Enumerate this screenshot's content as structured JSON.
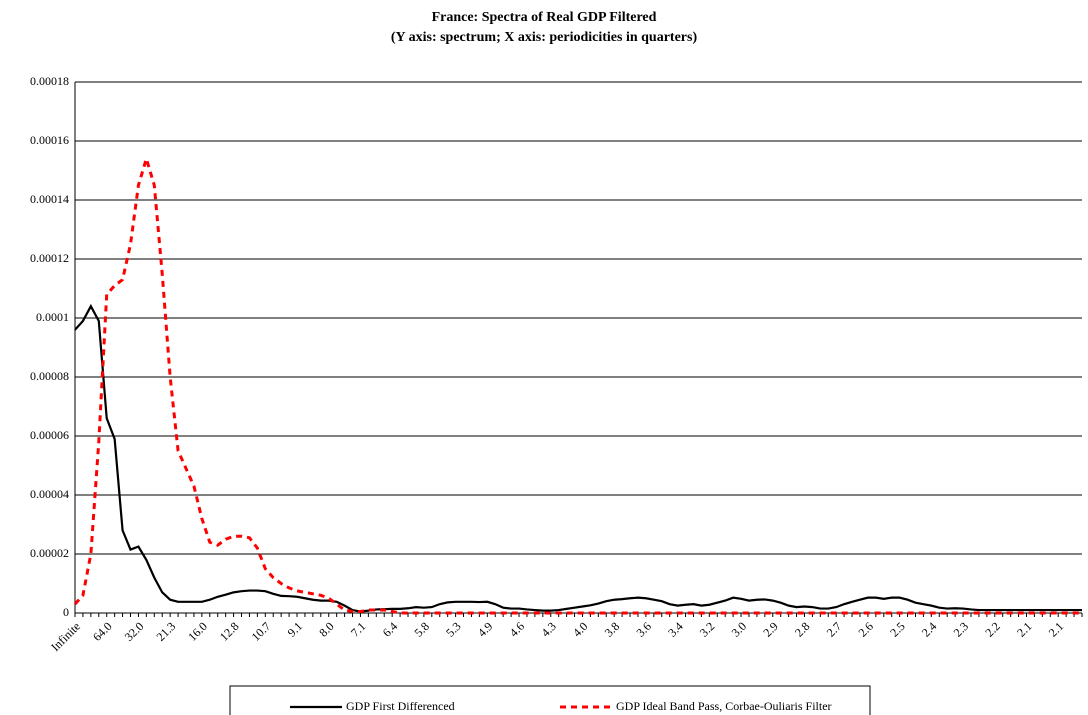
{
  "chart_data": {
    "type": "line",
    "title": "France: Spectra of Real GDP Filtered",
    "subtitle": "(Y axis: spectrum; X axis: periodicities in quarters)",
    "categories": [
      "Infinite",
      null,
      null,
      null,
      "64.0",
      null,
      null,
      null,
      "32.0",
      null,
      null,
      null,
      "21.3",
      null,
      null,
      null,
      "16.0",
      null,
      null,
      null,
      "12.8",
      null,
      null,
      null,
      "10.7",
      null,
      null,
      null,
      "9.1",
      null,
      null,
      null,
      "8.0",
      null,
      null,
      null,
      "7.1",
      null,
      null,
      null,
      "6.4",
      null,
      null,
      null,
      "5.8",
      null,
      null,
      null,
      "5.3",
      null,
      null,
      null,
      "4.9",
      null,
      null,
      null,
      "4.6",
      null,
      null,
      null,
      "4.3",
      null,
      null,
      null,
      "4.0",
      null,
      null,
      null,
      "3.8",
      null,
      null,
      null,
      "3.6",
      null,
      null,
      null,
      "3.4",
      null,
      null,
      null,
      "3.2",
      null,
      null,
      null,
      "3.0",
      null,
      null,
      null,
      "2.9",
      null,
      null,
      null,
      "2.8",
      null,
      null,
      null,
      "2.7",
      null,
      null,
      null,
      "2.6",
      null,
      null,
      null,
      "2.5",
      null,
      null,
      null,
      "2.4",
      null,
      null,
      null,
      "2.3",
      null,
      null,
      null,
      "2.2",
      null,
      null,
      null,
      "2.1",
      null,
      null,
      null,
      "2.1",
      null,
      null,
      null
    ],
    "series": [
      {
        "name": "GDP First Differenced",
        "color": "#000000",
        "dash": false,
        "values": [
          9.6e-05,
          9.9e-05,
          0.000104,
          9.9e-05,
          6.6e-05,
          5.9e-05,
          2.8e-05,
          2.15e-05,
          2.25e-05,
          1.8e-05,
          1.2e-05,
          7e-06,
          4.5e-06,
          3.8e-06,
          3.8e-06,
          3.8e-06,
          3.8e-06,
          4.5e-06,
          5.5e-06,
          6.2e-06,
          7e-06,
          7.4e-06,
          7.6e-06,
          7.6e-06,
          7.4e-06,
          6.5e-06,
          5.8e-06,
          5.7e-06,
          5.5e-06,
          5e-06,
          4.5e-06,
          4.2e-06,
          4.2e-06,
          3.8e-06,
          2.5e-06,
          1e-06,
          5e-07,
          8e-07,
          1.2e-06,
          1.3e-06,
          1.4e-06,
          1.4e-06,
          1.6e-06,
          2e-06,
          1.8e-06,
          2e-06,
          3e-06,
          3.6e-06,
          3.8e-06,
          3.8e-06,
          3.8e-06,
          3.7e-06,
          3.8e-06,
          3e-06,
          1.8e-06,
          1.5e-06,
          1.5e-06,
          1.2e-06,
          1e-06,
          8e-07,
          8e-07,
          1e-06,
          1.4e-06,
          1.8e-06,
          2.2e-06,
          2.6e-06,
          3.2e-06,
          4e-06,
          4.5e-06,
          4.7e-06,
          5e-06,
          5.2e-06,
          5e-06,
          4.5e-06,
          4e-06,
          3e-06,
          2.5e-06,
          2.8e-06,
          3e-06,
          2.5e-06,
          2.8e-06,
          3.5e-06,
          4.2e-06,
          5.2e-06,
          4.8e-06,
          4.2e-06,
          4.5e-06,
          4.6e-06,
          4.2e-06,
          3.5e-06,
          2.5e-06,
          2e-06,
          2.2e-06,
          2e-06,
          1.5e-06,
          1.5e-06,
          2e-06,
          3e-06,
          3.8e-06,
          4.5e-06,
          5.2e-06,
          5.2e-06,
          4.8e-06,
          5.2e-06,
          5.2e-06,
          4.5e-06,
          3.5e-06,
          3e-06,
          2.5e-06,
          1.8e-06,
          1.5e-06,
          1.6e-06,
          1.5e-06,
          1.2e-06,
          1e-06,
          1e-06,
          1e-06,
          1e-06,
          1e-06,
          1e-06,
          1e-06,
          1e-06,
          1e-06,
          1e-06,
          1e-06,
          1e-06,
          1e-06,
          1e-06
        ]
      },
      {
        "name": "GDP Ideal Band Pass, Corbae-Ouliaris Filter",
        "color": "#ff0000",
        "dash": true,
        "values": [
          3e-06,
          6e-06,
          2e-05,
          5.8e-05,
          0.000108,
          0.000111,
          0.000113,
          0.000125,
          0.000145,
          0.000154,
          0.000145,
          0.000115,
          8e-05,
          5.5e-05,
          4.9e-05,
          4.3e-05,
          3.2e-05,
          2.4e-05,
          2.3e-05,
          2.5e-05,
          2.6e-05,
          2.6e-05,
          2.55e-05,
          2.2e-05,
          1.5e-05,
          1.2e-05,
          1e-05,
          8.5e-06,
          7.5e-06,
          7e-06,
          6.5e-06,
          6e-06,
          5e-06,
          3e-06,
          1e-06,
          5e-07,
          5e-07,
          1e-06,
          1e-06,
          1e-06,
          5e-07,
          0,
          0,
          0,
          0,
          0,
          0,
          0,
          0,
          0,
          0,
          0,
          0,
          0,
          0,
          0,
          0,
          0,
          0,
          0,
          0,
          0,
          0,
          0,
          0,
          0,
          0,
          0,
          0,
          0,
          0,
          0,
          0,
          0,
          0,
          0,
          0,
          0,
          0,
          0,
          0,
          0,
          0,
          0,
          0,
          0,
          0,
          0,
          0,
          0,
          0,
          0,
          0,
          0,
          0,
          0,
          0,
          0,
          0,
          0,
          0,
          0,
          0,
          0,
          0,
          0,
          0,
          0,
          0,
          0,
          0,
          0,
          0,
          0,
          0,
          0,
          0,
          0,
          0,
          0,
          0,
          0,
          0,
          0,
          0,
          0,
          0,
          0
        ]
      }
    ],
    "ylim": [
      0,
      0.00018
    ],
    "yticks": [
      0,
      2e-05,
      4e-05,
      6e-05,
      8e-05,
      0.0001,
      0.00012,
      0.00014,
      0.00016,
      0.00018
    ],
    "grid": true
  }
}
